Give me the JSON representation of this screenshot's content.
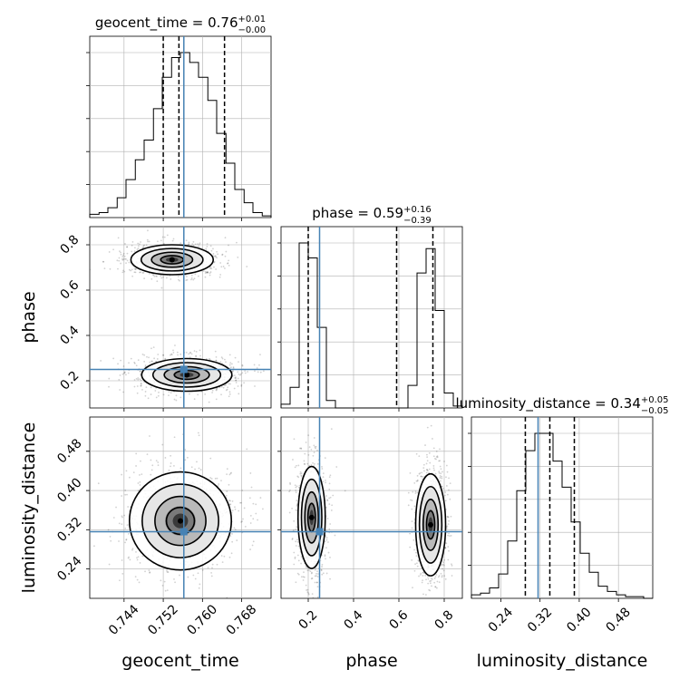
{
  "chart_data": {
    "type": "corner",
    "grid": true,
    "truth_color": "#4682b4",
    "parameters": [
      {
        "name": "geocent_time",
        "title_prefix": "geocent_time = 0.76",
        "title_plus": "+0.01",
        "title_minus": "−0.00",
        "range": [
          0.737,
          0.774
        ],
        "ticks": [
          0.744,
          0.752,
          0.76,
          0.768
        ],
        "tick_labels": [
          "0.744",
          "0.752",
          "0.760",
          "0.768"
        ],
        "quantiles": [
          0.752,
          0.7552,
          0.7645
        ],
        "truth": 0.7562,
        "hist": {
          "edges": [
            0.737,
            0.7389,
            0.7407,
            0.7426,
            0.7444,
            0.7463,
            0.7481,
            0.75,
            0.7518,
            0.7537,
            0.7555,
            0.7574,
            0.7592,
            0.7611,
            0.7629,
            0.7648,
            0.7666,
            0.7685,
            0.7703,
            0.7722,
            0.774
          ],
          "counts": [
            0.02,
            0.03,
            0.06,
            0.12,
            0.23,
            0.35,
            0.47,
            0.66,
            0.85,
            0.97,
            1.0,
            0.94,
            0.85,
            0.71,
            0.51,
            0.33,
            0.17,
            0.09,
            0.03,
            0.01
          ]
        }
      },
      {
        "name": "phase",
        "title_prefix": "phase = 0.59",
        "title_plus": "+0.16",
        "title_minus": "−0.39",
        "range": [
          0.08,
          0.88
        ],
        "ticks": [
          0.2,
          0.4,
          0.6,
          0.8
        ],
        "tick_labels": [
          "0.2",
          "0.4",
          "0.6",
          "0.8"
        ],
        "quantiles": [
          0.2,
          0.59,
          0.75
        ],
        "truth": 0.25,
        "hist": {
          "edges": [
            0.08,
            0.12,
            0.16,
            0.2,
            0.24,
            0.28,
            0.32,
            0.36,
            0.4,
            0.44,
            0.48,
            0.52,
            0.56,
            0.6,
            0.64,
            0.68,
            0.72,
            0.76,
            0.8,
            0.84,
            0.88
          ],
          "counts": [
            0.02,
            0.11,
            0.88,
            0.8,
            0.43,
            0.04,
            0.0,
            0.0,
            0.0,
            0.0,
            0.0,
            0.0,
            0.0,
            0.0,
            0.12,
            0.72,
            0.85,
            0.52,
            0.08,
            0.01
          ]
        }
      },
      {
        "name": "luminosity_distance",
        "title_prefix": "luminosity_distance = 0.34",
        "title_plus": "+0.05",
        "title_minus": "−0.05",
        "range": [
          0.18,
          0.55
        ],
        "ticks": [
          0.24,
          0.32,
          0.4,
          0.48
        ],
        "tick_labels": [
          "0.24",
          "0.32",
          "0.40",
          "0.48"
        ],
        "quantiles": [
          0.29,
          0.34,
          0.39
        ],
        "truth": 0.316,
        "hist": {
          "edges": [
            0.18,
            0.1985,
            0.217,
            0.2355,
            0.254,
            0.2725,
            0.291,
            0.3095,
            0.328,
            0.3465,
            0.365,
            0.3835,
            0.402,
            0.4205,
            0.439,
            0.4575,
            0.476,
            0.4945,
            0.513,
            0.5315,
            0.55
          ],
          "counts": [
            0.02,
            0.03,
            0.06,
            0.14,
            0.33,
            0.62,
            0.85,
            0.95,
            0.95,
            0.79,
            0.64,
            0.44,
            0.26,
            0.15,
            0.07,
            0.04,
            0.02,
            0.01,
            0.01,
            0.0
          ]
        }
      }
    ],
    "pairs": [
      {
        "x": "geocent_time",
        "y": "phase",
        "modes": [
          {
            "cx": 0.7538,
            "cy": 0.734,
            "sx": 0.0042,
            "sy": 0.033
          },
          {
            "cx": 0.7568,
            "cy": 0.226,
            "sx": 0.0046,
            "sy": 0.036
          }
        ]
      },
      {
        "x": "geocent_time",
        "y": "luminosity_distance",
        "modes": [
          {
            "cx": 0.7555,
            "cy": 0.338,
            "sx": 0.0052,
            "sy": 0.05
          }
        ]
      },
      {
        "x": "phase",
        "y": "luminosity_distance",
        "modes": [
          {
            "cx": 0.215,
            "cy": 0.345,
            "sx": 0.03,
            "sy": 0.052
          },
          {
            "cx": 0.74,
            "cy": 0.33,
            "sx": 0.033,
            "sy": 0.052
          }
        ]
      }
    ]
  }
}
